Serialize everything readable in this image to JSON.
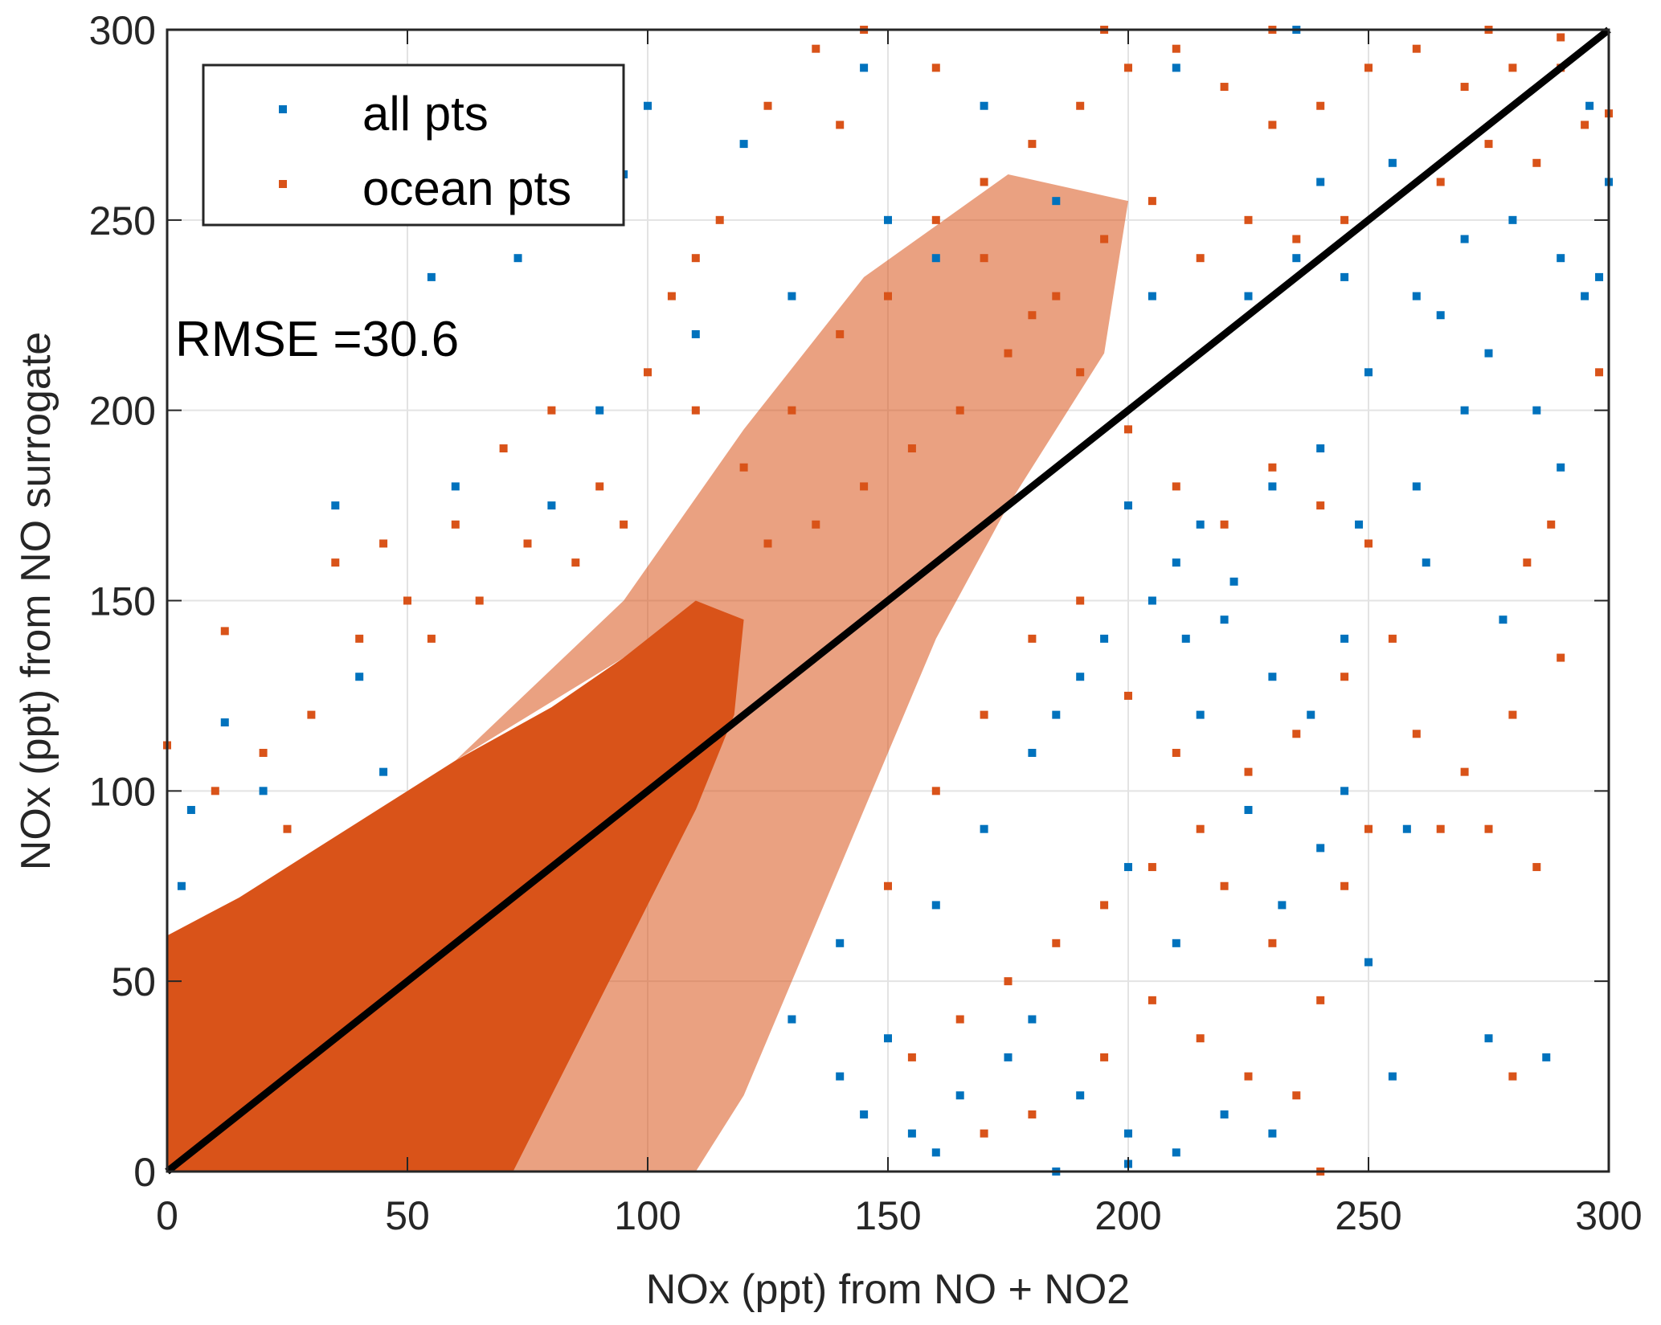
{
  "chart_data": {
    "type": "scatter",
    "title": "",
    "xlabel": "NOx (ppt) from NO + NO2",
    "ylabel": "NOx (ppt) from NO surrogate",
    "xlim": [
      0,
      300
    ],
    "ylim": [
      0,
      300
    ],
    "xticks": [
      "0",
      "50",
      "100",
      "150",
      "200",
      "250",
      "300"
    ],
    "yticks": [
      "0",
      "50",
      "100",
      "150",
      "200",
      "250",
      "300"
    ],
    "grid": true,
    "legend_position": "top-left",
    "annotation": "RMSE =30.6",
    "reference_line": {
      "name": "1:1 line",
      "x": [
        0,
        300
      ],
      "y": [
        0,
        300
      ],
      "color": "#000000"
    },
    "series": [
      {
        "name": "all pts",
        "color": "#0072BD",
        "points": [
          [
            210,
            160
          ],
          [
            215,
            170
          ],
          [
            205,
            150
          ],
          [
            220,
            145
          ],
          [
            200,
            175
          ],
          [
            230,
            180
          ],
          [
            240,
            190
          ],
          [
            250,
            210
          ],
          [
            260,
            230
          ],
          [
            270,
            245
          ],
          [
            280,
            250
          ],
          [
            290,
            240
          ],
          [
            295,
            230
          ],
          [
            285,
            200
          ],
          [
            275,
            215
          ],
          [
            265,
            225
          ],
          [
            245,
            235
          ],
          [
            235,
            240
          ],
          [
            225,
            230
          ],
          [
            195,
            140
          ],
          [
            190,
            130
          ],
          [
            185,
            120
          ],
          [
            180,
            110
          ],
          [
            170,
            90
          ],
          [
            160,
            70
          ],
          [
            180,
            40
          ],
          [
            190,
            20
          ],
          [
            200,
            10
          ],
          [
            210,
            5
          ],
          [
            220,
            15
          ],
          [
            230,
            10
          ],
          [
            175,
            30
          ],
          [
            165,
            20
          ],
          [
            155,
            10
          ],
          [
            145,
            15
          ],
          [
            140,
            25
          ],
          [
            150,
            35
          ],
          [
            160,
            5
          ],
          [
            185,
            0
          ],
          [
            200,
            2
          ],
          [
            250,
            55
          ],
          [
            255,
            25
          ],
          [
            275,
            35
          ],
          [
            287,
            30
          ],
          [
            245,
            100
          ],
          [
            240,
            85
          ],
          [
            225,
            95
          ],
          [
            215,
            120
          ],
          [
            230,
            130
          ],
          [
            260,
            180
          ],
          [
            270,
            200
          ],
          [
            290,
            185
          ],
          [
            298,
            235
          ],
          [
            296,
            280
          ],
          [
            300,
            260
          ],
          [
            255,
            265
          ],
          [
            240,
            260
          ],
          [
            210,
            290
          ],
          [
            235,
            300
          ],
          [
            160,
            240
          ],
          [
            150,
            250
          ],
          [
            120,
            270
          ],
          [
            100,
            280
          ],
          [
            145,
            290
          ],
          [
            110,
            220
          ],
          [
            90,
            200
          ],
          [
            80,
            175
          ],
          [
            60,
            180
          ],
          [
            45,
            105
          ],
          [
            40,
            130
          ],
          [
            35,
            175
          ],
          [
            20,
            100
          ],
          [
            5,
            95
          ],
          [
            3,
            75
          ],
          [
            12,
            118
          ],
          [
            73,
            240
          ],
          [
            55,
            235
          ],
          [
            30,
            280
          ],
          [
            95,
            262
          ],
          [
            130,
            230
          ],
          [
            170,
            280
          ],
          [
            185,
            255
          ],
          [
            205,
            230
          ],
          [
            212,
            140
          ],
          [
            222,
            155
          ],
          [
            248,
            170
          ],
          [
            262,
            160
          ],
          [
            278,
            145
          ],
          [
            238,
            120
          ],
          [
            245,
            140
          ],
          [
            200,
            80
          ],
          [
            210,
            60
          ],
          [
            232,
            70
          ],
          [
            258,
            90
          ],
          [
            140,
            60
          ],
          [
            130,
            40
          ]
        ]
      },
      {
        "name": "ocean pts",
        "color": "#D95319",
        "dense_region": [
          [
            0,
            0
          ],
          [
            0,
            62
          ],
          [
            15,
            72
          ],
          [
            40,
            92
          ],
          [
            60,
            108
          ],
          [
            80,
            122
          ],
          [
            95,
            135
          ],
          [
            110,
            150
          ],
          [
            120,
            145
          ],
          [
            118,
            120
          ],
          [
            110,
            95
          ],
          [
            100,
            70
          ],
          [
            90,
            45
          ],
          [
            80,
            20
          ],
          [
            72,
            0
          ]
        ],
        "medium_region": [
          [
            60,
            108
          ],
          [
            95,
            150
          ],
          [
            120,
            195
          ],
          [
            145,
            235
          ],
          [
            175,
            262
          ],
          [
            200,
            255
          ],
          [
            195,
            215
          ],
          [
            175,
            175
          ],
          [
            160,
            140
          ],
          [
            150,
            110
          ],
          [
            140,
            80
          ],
          [
            130,
            50
          ],
          [
            120,
            20
          ],
          [
            110,
            0
          ],
          [
            72,
            0
          ],
          [
            90,
            45
          ],
          [
            110,
            95
          ],
          [
            120,
            145
          ],
          [
            95,
            135
          ]
        ],
        "points": [
          [
            130,
            200
          ],
          [
            140,
            220
          ],
          [
            150,
            230
          ],
          [
            160,
            250
          ],
          [
            170,
            260
          ],
          [
            180,
            270
          ],
          [
            190,
            280
          ],
          [
            200,
            290
          ],
          [
            210,
            295
          ],
          [
            220,
            285
          ],
          [
            230,
            275
          ],
          [
            240,
            280
          ],
          [
            250,
            290
          ],
          [
            260,
            295
          ],
          [
            270,
            285
          ],
          [
            280,
            290
          ],
          [
            290,
            298
          ],
          [
            295,
            275
          ],
          [
            285,
            265
          ],
          [
            275,
            270
          ],
          [
            265,
            260
          ],
          [
            245,
            250
          ],
          [
            235,
            245
          ],
          [
            225,
            250
          ],
          [
            215,
            240
          ],
          [
            205,
            255
          ],
          [
            195,
            245
          ],
          [
            185,
            230
          ],
          [
            175,
            215
          ],
          [
            165,
            200
          ],
          [
            155,
            190
          ],
          [
            145,
            180
          ],
          [
            135,
            170
          ],
          [
            125,
            165
          ],
          [
            120,
            185
          ],
          [
            110,
            200
          ],
          [
            100,
            210
          ],
          [
            90,
            180
          ],
          [
            80,
            200
          ],
          [
            70,
            190
          ],
          [
            60,
            170
          ],
          [
            50,
            150
          ],
          [
            40,
            140
          ],
          [
            30,
            120
          ],
          [
            20,
            110
          ],
          [
            10,
            100
          ],
          [
            0,
            112
          ],
          [
            12,
            142
          ],
          [
            25,
            90
          ],
          [
            35,
            160
          ],
          [
            45,
            165
          ],
          [
            55,
            140
          ],
          [
            65,
            150
          ],
          [
            75,
            165
          ],
          [
            85,
            160
          ],
          [
            95,
            170
          ],
          [
            105,
            230
          ],
          [
            115,
            250
          ],
          [
            125,
            280
          ],
          [
            135,
            295
          ],
          [
            145,
            300
          ],
          [
            160,
            290
          ],
          [
            170,
            240
          ],
          [
            180,
            225
          ],
          [
            190,
            210
          ],
          [
            200,
            195
          ],
          [
            210,
            180
          ],
          [
            220,
            170
          ],
          [
            230,
            185
          ],
          [
            240,
            175
          ],
          [
            250,
            165
          ],
          [
            255,
            140
          ],
          [
            245,
            130
          ],
          [
            235,
            115
          ],
          [
            225,
            105
          ],
          [
            215,
            90
          ],
          [
            205,
            80
          ],
          [
            195,
            70
          ],
          [
            185,
            60
          ],
          [
            175,
            50
          ],
          [
            165,
            40
          ],
          [
            155,
            30
          ],
          [
            150,
            75
          ],
          [
            160,
            100
          ],
          [
            170,
            120
          ],
          [
            180,
            140
          ],
          [
            190,
            150
          ],
          [
            200,
            125
          ],
          [
            210,
            110
          ],
          [
            220,
            75
          ],
          [
            230,
            60
          ],
          [
            240,
            45
          ],
          [
            250,
            90
          ],
          [
            265,
            90
          ],
          [
            275,
            90
          ],
          [
            285,
            80
          ],
          [
            290,
            135
          ],
          [
            280,
            120
          ],
          [
            270,
            105
          ],
          [
            260,
            115
          ],
          [
            245,
            75
          ],
          [
            235,
            20
          ],
          [
            225,
            25
          ],
          [
            215,
            35
          ],
          [
            205,
            45
          ],
          [
            195,
            30
          ],
          [
            180,
            15
          ],
          [
            170,
            10
          ],
          [
            240,
            0
          ],
          [
            280,
            25
          ],
          [
            288,
            170
          ],
          [
            283,
            160
          ],
          [
            290,
            290
          ],
          [
            298,
            210
          ],
          [
            300,
            278
          ],
          [
            275,
            300
          ],
          [
            230,
            300
          ],
          [
            195,
            300
          ],
          [
            140,
            275
          ],
          [
            110,
            240
          ]
        ]
      }
    ]
  }
}
